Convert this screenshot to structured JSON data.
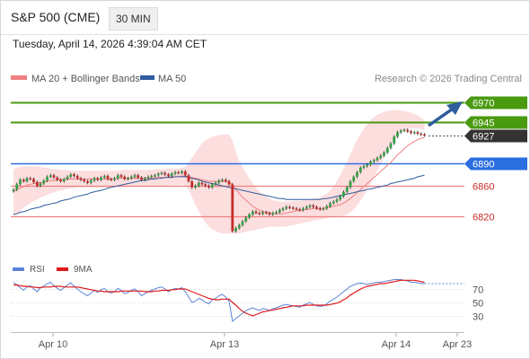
{
  "header": {
    "title": "S&P 500 (CME)",
    "timeframe": "30 MIN",
    "timestamp": "Tuesday, April 14, 2026 4:39:04 AM CET"
  },
  "legend": {
    "items": [
      {
        "label": "MA 20 + Bollinger Bands",
        "color": "#f08080"
      },
      {
        "label": "MA 50",
        "color": "#2f5d9e"
      }
    ],
    "copyright": "Research © 2026 Trading Central"
  },
  "colors": {
    "up": "#33a046",
    "down": "#c82c2c",
    "resistance": "#4a9a10",
    "support": "#f08080",
    "pivot": "#2a6ee0",
    "last": "#333333",
    "band": "#fcd8d8",
    "ma50": "#2f5d9e",
    "rsi": "#5b84d8",
    "rsi_ma": "#e0191c"
  },
  "chart_data": [
    {
      "type": "candlestick",
      "title": "S&P 500 (CME)",
      "timeframe": "30 MIN",
      "x_labels": [
        "Apr 10",
        "Apr 13",
        "Apr 14",
        "Apr 23"
      ],
      "ylim": [
        6784,
        6986
      ],
      "levels": [
        {
          "value": 6970,
          "label": "6970",
          "kind": "resistance"
        },
        {
          "value": 6945,
          "label": "6945",
          "kind": "resistance"
        },
        {
          "value": 6927,
          "label": "6927",
          "kind": "last"
        },
        {
          "value": 6890,
          "label": "6890",
          "kind": "pivot"
        },
        {
          "value": 6860,
          "label": "6860",
          "kind": "support"
        },
        {
          "value": 6820,
          "label": "6820",
          "kind": "support"
        }
      ],
      "close": [
        6855,
        6862,
        6868,
        6866,
        6870,
        6869,
        6865,
        6860,
        6863,
        6867,
        6872,
        6874,
        6871,
        6868,
        6866,
        6869,
        6872,
        6875,
        6873,
        6870,
        6868,
        6866,
        6864,
        6867,
        6870,
        6868,
        6871,
        6873,
        6869,
        6868,
        6870,
        6874,
        6872,
        6869,
        6870,
        6872,
        6874,
        6871,
        6868,
        6870,
        6872,
        6873,
        6874,
        6876,
        6877,
        6875,
        6873,
        6876,
        6878,
        6877,
        6879,
        6874,
        6866,
        6858,
        6860,
        6864,
        6862,
        6860,
        6858,
        6862,
        6864,
        6867,
        6868,
        6866,
        6862,
        6800,
        6804,
        6808,
        6813,
        6818,
        6822,
        6826,
        6824,
        6823,
        6825,
        6824,
        6822,
        6824,
        6825,
        6828,
        6830,
        6832,
        6831,
        6830,
        6829,
        6828,
        6830,
        6832,
        6834,
        6832,
        6830,
        6829,
        6830,
        6833,
        6837,
        6839,
        6842,
        6846,
        6852,
        6858,
        6866,
        6872,
        6878,
        6884,
        6886,
        6888,
        6892,
        6894,
        6897,
        6900,
        6904,
        6910,
        6916,
        6925,
        6931,
        6933,
        6934,
        6932,
        6930,
        6931,
        6929,
        6928,
        6927
      ],
      "ma20": [
        6852,
        6855,
        6857,
        6859,
        6861,
        6862,
        6863,
        6864,
        6864,
        6865,
        6866,
        6867,
        6867,
        6868,
        6868,
        6868,
        6869,
        6869,
        6869,
        6869,
        6869,
        6869,
        6869,
        6869,
        6869,
        6869,
        6869,
        6869,
        6869,
        6869,
        6869,
        6870,
        6870,
        6870,
        6870,
        6870,
        6870,
        6870,
        6870,
        6870,
        6870,
        6870,
        6871,
        6871,
        6871,
        6871,
        6872,
        6872,
        6872,
        6872,
        6873,
        6873,
        6872,
        6871,
        6870,
        6869,
        6868,
        6867,
        6866,
        6866,
        6866,
        6866,
        6866,
        6866,
        6866,
        6860,
        6855,
        6850,
        6845,
        6841,
        6837,
        6833,
        6830,
        6828,
        6826,
        6825,
        6824,
        6823,
        6823,
        6823,
        6823,
        6824,
        6825,
        6826,
        6827,
        6827,
        6828,
        6829,
        6829,
        6830,
        6830,
        6830,
        6830,
        6831,
        6832,
        6833,
        6834,
        6835,
        6837,
        6840,
        6843,
        6847,
        6851,
        6855,
        6859,
        6863,
        6867,
        6871,
        6875,
        6879,
        6883,
        6887,
        6891,
        6896,
        6901,
        6905,
        6909,
        6913,
        6916,
        6919,
        6921,
        6923,
        6924
      ],
      "ma50": [
        6822,
        6823,
        6825,
        6826,
        6827,
        6829,
        6830,
        6831,
        6832,
        6834,
        6835,
        6836,
        6837,
        6838,
        6840,
        6841,
        6842,
        6843,
        6845,
        6846,
        6847,
        6848,
        6849,
        6851,
        6852,
        6853,
        6854,
        6855,
        6857,
        6858,
        6859,
        6860,
        6861,
        6862,
        6863,
        6864,
        6865,
        6866,
        6867,
        6867,
        6868,
        6869,
        6869,
        6870,
        6870,
        6871,
        6871,
        6871,
        6872,
        6872,
        6872,
        6872,
        6871,
        6870,
        6869,
        6868,
        6866,
        6865,
        6864,
        6863,
        6862,
        6861,
        6860,
        6859,
        6858,
        6857,
        6856,
        6855,
        6854,
        6853,
        6852,
        6851,
        6850,
        6849,
        6848,
        6847,
        6846,
        6845,
        6844,
        6843,
        6843,
        6842,
        6842,
        6842,
        6842,
        6842,
        6842,
        6842,
        6842,
        6842,
        6842,
        6842,
        6843,
        6843,
        6844,
        6845,
        6846,
        6847,
        6848,
        6849,
        6850,
        6851,
        6852,
        6853,
        6854,
        6855,
        6856,
        6857,
        6858,
        6859,
        6860,
        6861,
        6863,
        6864,
        6865,
        6866,
        6867,
        6868,
        6869,
        6870,
        6872,
        6873,
        6874
      ],
      "bb_upper": [
        6882,
        6884,
        6885,
        6886,
        6886,
        6886,
        6886,
        6886,
        6885,
        6884,
        6884,
        6883,
        6882,
        6882,
        6881,
        6881,
        6881,
        6880,
        6880,
        6880,
        6880,
        6880,
        6880,
        6880,
        6880,
        6880,
        6880,
        6880,
        6880,
        6880,
        6880,
        6880,
        6881,
        6881,
        6881,
        6881,
        6881,
        6881,
        6881,
        6881,
        6881,
        6881,
        6882,
        6882,
        6882,
        6882,
        6883,
        6883,
        6883,
        6883,
        6884,
        6885,
        6890,
        6897,
        6904,
        6910,
        6916,
        6920,
        6923,
        6925,
        6926,
        6927,
        6928,
        6928,
        6928,
        6920,
        6905,
        6893,
        6884,
        6877,
        6870,
        6864,
        6858,
        6853,
        6849,
        6846,
        6843,
        6841,
        6840,
        6839,
        6839,
        6839,
        6839,
        6840,
        6840,
        6840,
        6841,
        6841,
        6842,
        6843,
        6844,
        6845,
        6847,
        6850,
        6854,
        6859,
        6866,
        6874,
        6883,
        6892,
        6902,
        6912,
        6921,
        6929,
        6936,
        6942,
        6947,
        6951,
        6954,
        6956,
        6958,
        6959,
        6960,
        6960,
        6960,
        6960,
        6959,
        6958,
        6957,
        6955,
        6953,
        6950,
        6947
      ],
      "bb_lower": [
        6820,
        6823,
        6827,
        6831,
        6834,
        6837,
        6840,
        6842,
        6844,
        6846,
        6848,
        6850,
        6851,
        6853,
        6854,
        6855,
        6856,
        6857,
        6857,
        6858,
        6858,
        6858,
        6858,
        6858,
        6858,
        6858,
        6858,
        6858,
        6858,
        6858,
        6858,
        6859,
        6859,
        6859,
        6859,
        6859,
        6859,
        6859,
        6859,
        6859,
        6859,
        6859,
        6860,
        6860,
        6860,
        6860,
        6861,
        6861,
        6861,
        6861,
        6862,
        6860,
        6855,
        6845,
        6835,
        6826,
        6818,
        6811,
        6806,
        6802,
        6800,
        6798,
        6797,
        6797,
        6797,
        6797,
        6797,
        6797,
        6798,
        6799,
        6800,
        6801,
        6802,
        6803,
        6804,
        6805,
        6806,
        6806,
        6806,
        6806,
        6806,
        6806,
        6807,
        6808,
        6809,
        6810,
        6811,
        6812,
        6813,
        6814,
        6815,
        6815,
        6816,
        6817,
        6818,
        6818,
        6818,
        6819,
        6820,
        6822,
        6825,
        6829,
        6834,
        6840,
        6847,
        6855,
        6863,
        6871,
        6880,
        6889,
        6898,
        6906,
        6913,
        6920,
        6926,
        6930,
        6933,
        6935,
        6936,
        6936,
        6936,
        6935,
        6934
      ]
    },
    {
      "type": "line",
      "legend": [
        "RSI",
        "9MA"
      ],
      "y_ticks": [
        70,
        50,
        30
      ],
      "ylim": [
        10,
        90
      ],
      "rsi": [
        80,
        76,
        72,
        68,
        73,
        75,
        70,
        66,
        72,
        74,
        78,
        80,
        75,
        71,
        68,
        72,
        76,
        79,
        74,
        70,
        66,
        63,
        60,
        64,
        68,
        65,
        69,
        71,
        66,
        64,
        66,
        71,
        68,
        63,
        65,
        68,
        70,
        66,
        60,
        63,
        66,
        68,
        70,
        72,
        73,
        70,
        66,
        69,
        71,
        70,
        72,
        66,
        58,
        50,
        52,
        56,
        54,
        50,
        48,
        54,
        56,
        60,
        62,
        58,
        52,
        22,
        26,
        30,
        34,
        38,
        40,
        42,
        40,
        38,
        41,
        40,
        38,
        41,
        42,
        44,
        46,
        47,
        46,
        45,
        44,
        43,
        46,
        48,
        50,
        47,
        45,
        44,
        45,
        48,
        52,
        55,
        58,
        62,
        66,
        70,
        74,
        76,
        78,
        79,
        78,
        77,
        78,
        79,
        80,
        80,
        81,
        82,
        83,
        84,
        84,
        84,
        83,
        82,
        80,
        80,
        79,
        78,
        78
      ],
      "ma9": [
        76,
        76,
        75,
        74,
        74,
        73,
        73,
        72,
        72,
        73,
        73,
        73,
        74,
        74,
        74,
        73,
        73,
        73,
        73,
        73,
        72,
        71,
        70,
        69,
        68,
        67,
        67,
        66,
        66,
        66,
        66,
        66,
        67,
        67,
        67,
        67,
        67,
        67,
        67,
        66,
        66,
        66,
        67,
        67,
        68,
        68,
        68,
        69,
        69,
        70,
        70,
        70,
        68,
        66,
        64,
        62,
        60,
        58,
        56,
        55,
        54,
        54,
        55,
        55,
        55,
        50,
        46,
        41,
        37,
        34,
        32,
        30,
        32,
        34,
        36,
        37,
        38,
        39,
        40,
        41,
        42,
        43,
        44,
        45,
        45,
        45,
        45,
        46,
        46,
        46,
        46,
        46,
        46,
        46,
        47,
        48,
        49,
        51,
        54,
        57,
        61,
        64,
        67,
        70,
        72,
        74,
        75,
        76,
        77,
        78,
        78,
        79,
        80,
        81,
        82,
        83,
        83,
        83,
        83,
        83,
        82,
        81,
        80
      ]
    }
  ]
}
